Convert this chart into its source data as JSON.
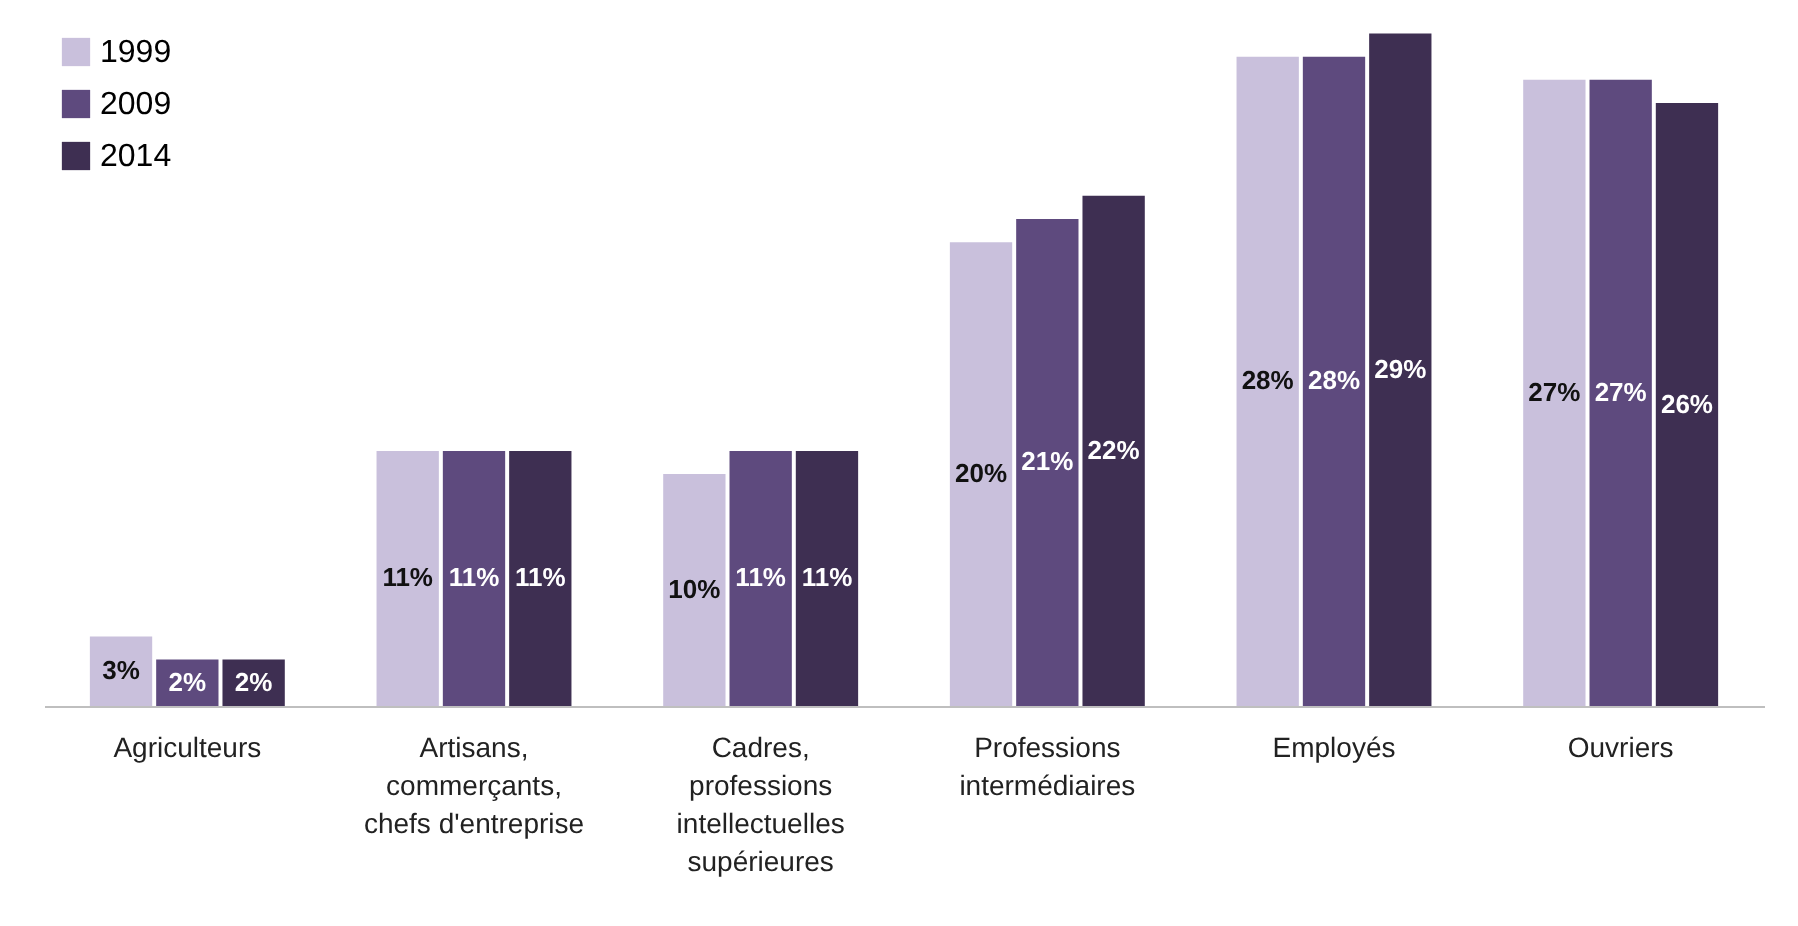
{
  "chart_data": {
    "type": "bar",
    "categories": [
      "Agriculteurs",
      "Artisans, commerçants, chefs d'entreprise",
      "Cadres, professions intellectuelles supérieures",
      "Professions intermédiaires",
      "Employés",
      "Ouvriers"
    ],
    "series": [
      {
        "name": "1999",
        "color": "#c9c0dc",
        "values": [
          3,
          11,
          10,
          20,
          28,
          27
        ],
        "value_labels": [
          "3%",
          "11%",
          "10%",
          "20%",
          "28%",
          "27%"
        ]
      },
      {
        "name": "2009",
        "color": "#5e4a7e",
        "values": [
          2,
          11,
          11,
          21,
          28,
          27
        ],
        "value_labels": [
          "2%",
          "11%",
          "11%",
          "21%",
          "28%",
          "27%"
        ]
      },
      {
        "name": "2014",
        "color": "#3e2f52",
        "values": [
          2,
          11,
          11,
          22,
          29,
          26
        ],
        "value_labels": [
          "2%",
          "11%",
          "11%",
          "22%",
          "29%",
          "26%"
        ]
      }
    ],
    "legend": "top left",
    "grid": false
  }
}
